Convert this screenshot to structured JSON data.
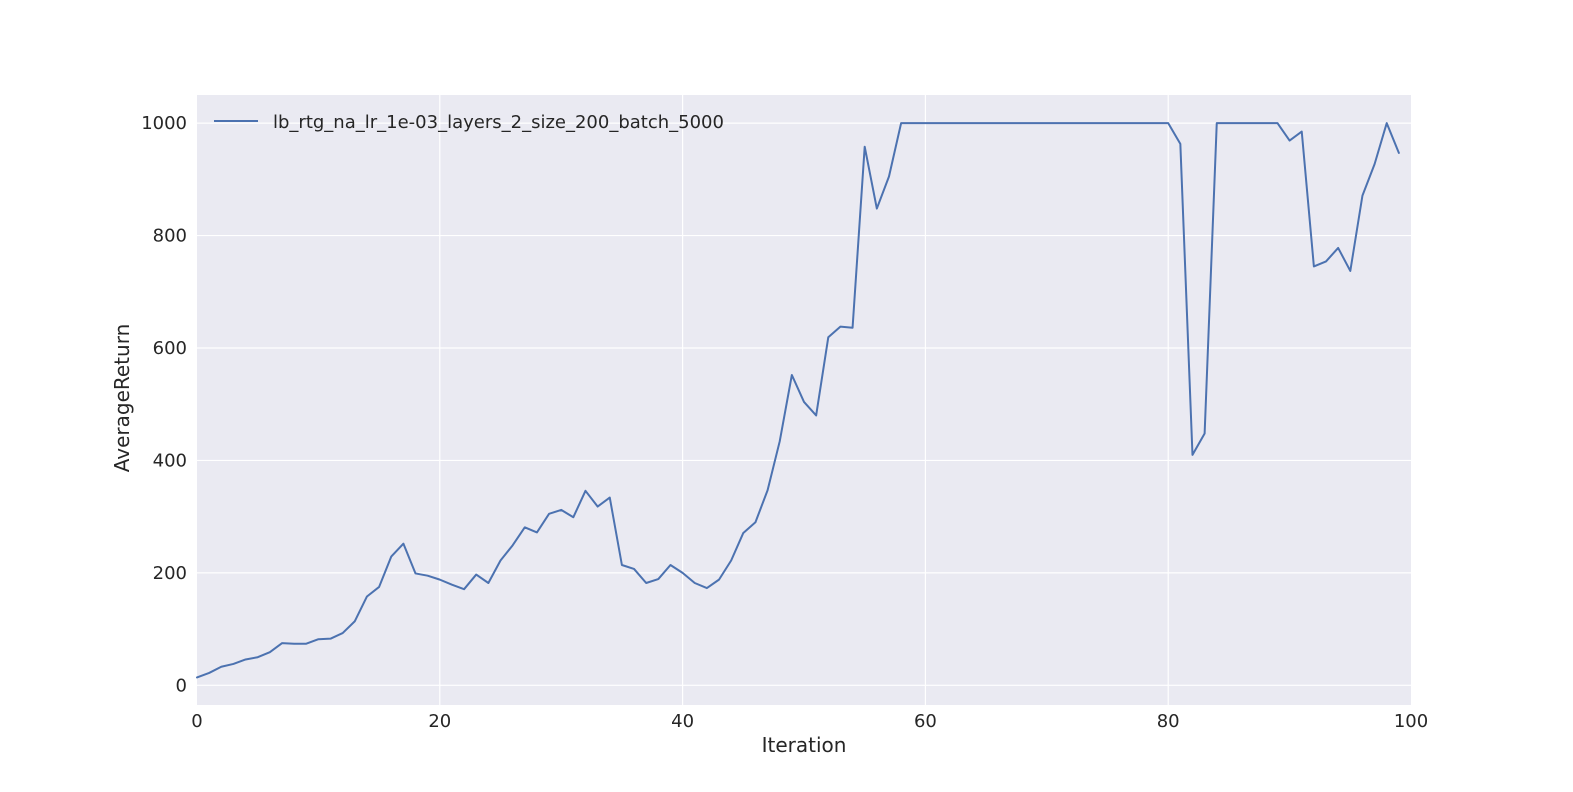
{
  "chart_data": {
    "type": "line",
    "xlabel": "Iteration",
    "ylabel": "AverageReturn",
    "xlim": [
      0,
      100
    ],
    "ylim": [
      -35,
      1050
    ],
    "xticks": [
      0,
      20,
      40,
      60,
      80,
      100
    ],
    "yticks": [
      0,
      200,
      400,
      600,
      800,
      1000
    ],
    "grid": true,
    "legend_position": "upper-left",
    "colors": {
      "background": "#EAEAF2",
      "grid": "#FFFFFF",
      "line": "#4C72B0",
      "text": "#262626"
    },
    "series": [
      {
        "name": "lb_rtg_na_lr_1e-03_layers_2_size_200_batch_5000",
        "x": [
          0,
          1,
          2,
          3,
          4,
          5,
          6,
          7,
          8,
          9,
          10,
          11,
          12,
          13,
          14,
          15,
          16,
          17,
          18,
          19,
          20,
          21,
          22,
          23,
          24,
          25,
          26,
          27,
          28,
          29,
          30,
          31,
          32,
          33,
          34,
          35,
          36,
          37,
          38,
          39,
          40,
          41,
          42,
          43,
          44,
          45,
          46,
          47,
          48,
          49,
          50,
          51,
          52,
          53,
          54,
          55,
          56,
          57,
          58,
          59,
          60,
          61,
          62,
          63,
          64,
          65,
          66,
          67,
          68,
          69,
          70,
          71,
          72,
          73,
          74,
          75,
          76,
          77,
          78,
          79,
          80,
          81,
          82,
          83,
          84,
          85,
          86,
          87,
          88,
          89,
          90,
          91,
          92,
          93,
          94,
          95,
          96,
          97,
          98,
          99
        ],
        "y": [
          14,
          22,
          33,
          38,
          46,
          50,
          59,
          75,
          74,
          74,
          82,
          83,
          93,
          114,
          158,
          175,
          229,
          252,
          199,
          195,
          188,
          179,
          171,
          197,
          182,
          222,
          249,
          281,
          272,
          305,
          312,
          299,
          346,
          318,
          334,
          214,
          207,
          182,
          189,
          214,
          200,
          182,
          173,
          188,
          222,
          271,
          290,
          347,
          434,
          552,
          504,
          480,
          619,
          638,
          636,
          958,
          848,
          905,
          1000,
          1000,
          1000,
          1000,
          1000,
          1000,
          1000,
          1000,
          1000,
          1000,
          1000,
          1000,
          1000,
          1000,
          1000,
          1000,
          1000,
          1000,
          1000,
          1000,
          1000,
          1000,
          1000,
          963,
          410,
          448,
          1000,
          1000,
          1000,
          1000,
          1000,
          1000,
          969,
          985,
          745,
          754,
          778,
          737,
          871,
          927,
          1000,
          947
        ]
      }
    ]
  }
}
